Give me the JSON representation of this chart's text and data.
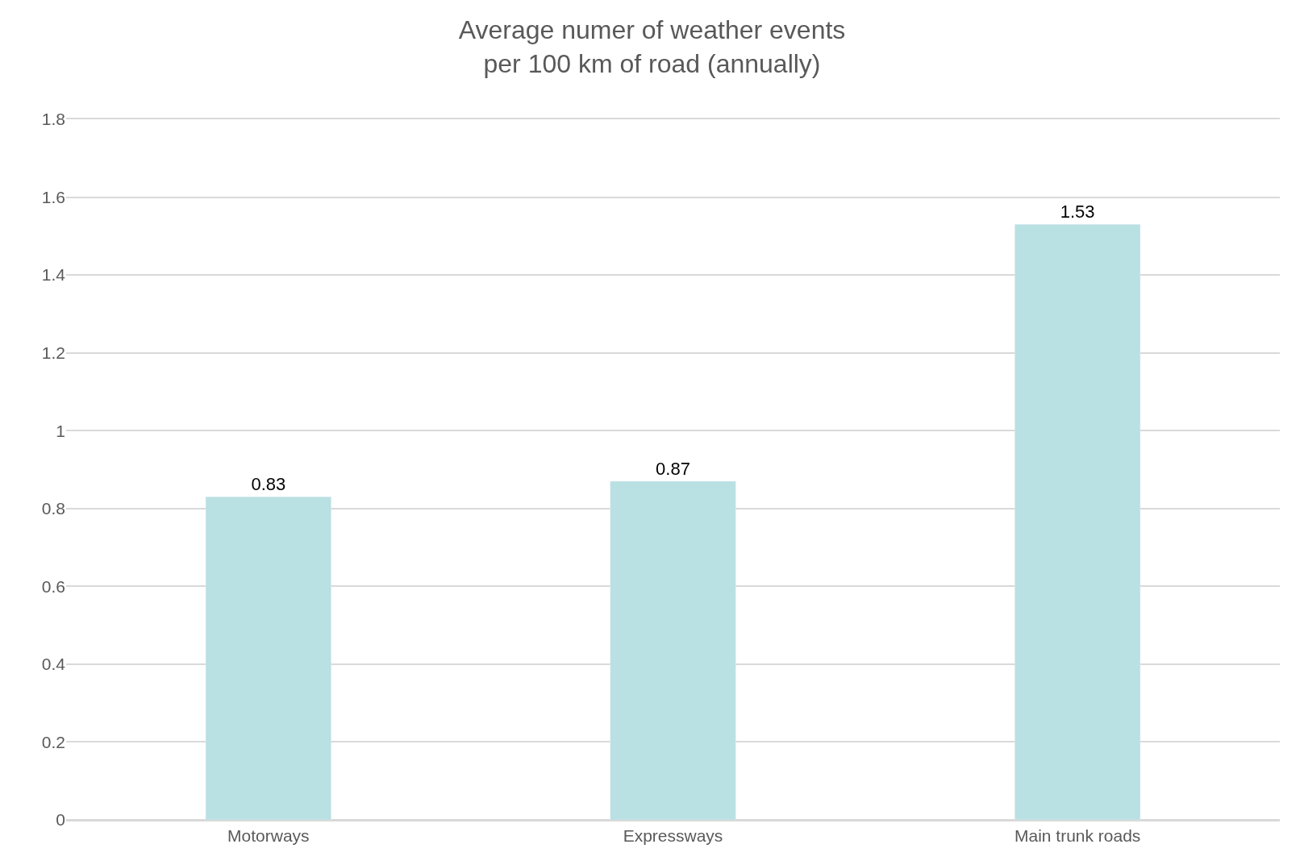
{
  "chart_data": {
    "type": "bar",
    "title": "Average numer of weather events\nper 100 km of road (annually)",
    "categories": [
      "Motorways",
      "Expressways",
      "Main trunk roads"
    ],
    "values": [
      0.83,
      0.87,
      1.53
    ],
    "color": "#b9e0e2",
    "ylim": [
      0,
      1.8
    ],
    "yticks": [
      0,
      0.2,
      0.4,
      0.6,
      0.8,
      1,
      1.2,
      1.4,
      1.6,
      1.8
    ],
    "grid": "y",
    "data_labels": true
  }
}
